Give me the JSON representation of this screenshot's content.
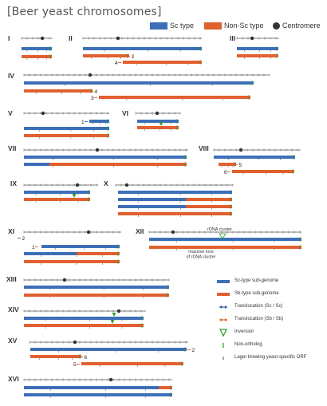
{
  "title": "[Beer yeast chromosomes]",
  "colors": {
    "sc": "#3d6fb8",
    "nonsc": "#e1602f",
    "axis": "#555555",
    "centromere": "#333333",
    "translocation_sc": "#2b5aa8",
    "translocation_sb": "#e1602f",
    "inversion": "#2ca02c",
    "nonortholog": "#2ca02c",
    "lager_orf": "#555555"
  },
  "top_legend": {
    "sc": "Sc type",
    "nonsc": "Non-Sc type",
    "centromere": "Centromere"
  },
  "bottom_legend": {
    "sc_subgenome": "Sc-type sub-genome",
    "sb_subgenome": "Sb-type sub-genome",
    "translocation_sc": "Translocation (Sc / Sc)",
    "translocation_sb": "Translocation (Sb / Sb)",
    "inversion": "Inversion",
    "nonortholog": "Non-ortholog",
    "lager_orf": "Lager brewing yeast-specific ORF"
  },
  "chromosomes": [
    {
      "label": "I",
      "bars": [
        [
          "sc"
        ],
        [
          "nonsc"
        ]
      ],
      "labels": []
    },
    {
      "label": "II",
      "bars": [
        [
          "sc"
        ],
        [
          "nonsc"
        ],
        [
          "nonsc"
        ]
      ],
      "labels": [
        "3",
        "4"
      ]
    },
    {
      "label": "III",
      "bars": [
        [
          "sc"
        ],
        [
          "nonsc"
        ]
      ],
      "labels": []
    },
    {
      "label": "IV",
      "bars": [
        [
          "sc"
        ],
        [
          "nonsc"
        ],
        [
          "nonsc"
        ]
      ],
      "labels": [
        "4",
        "3"
      ]
    },
    {
      "label": "V",
      "bars": [
        [
          "sc"
        ],
        [
          "sc"
        ],
        [
          "nonsc"
        ]
      ],
      "labels": [
        "1"
      ]
    },
    {
      "label": "VI",
      "bars": [
        [
          "sc"
        ],
        [
          "nonsc"
        ]
      ],
      "labels": []
    },
    {
      "label": "VII",
      "bars": [
        [
          "sc"
        ],
        [
          "sc",
          "nonsc"
        ]
      ],
      "labels": []
    },
    {
      "label": "VIII",
      "bars": [
        [
          "sc"
        ],
        [
          "nonsc"
        ],
        [
          "nonsc"
        ]
      ],
      "labels": [
        "5",
        "6"
      ]
    },
    {
      "label": "IX",
      "bars": [
        [
          "sc"
        ],
        [
          "nonsc"
        ]
      ],
      "labels": []
    },
    {
      "label": "X",
      "bars": [
        [
          "sc"
        ],
        [
          "sc",
          "nonsc"
        ],
        [
          "sc",
          "nonsc"
        ],
        [
          "nonsc"
        ]
      ],
      "labels": []
    },
    {
      "label": "XI",
      "bars": [
        [
          "sc"
        ],
        [
          "sc",
          "nonsc"
        ],
        [
          "nonsc"
        ]
      ],
      "labels": [
        "2",
        "1"
      ]
    },
    {
      "label": "XII",
      "bars": [
        [
          "sc"
        ],
        [
          "nonsc"
        ]
      ],
      "labels": [],
      "annotations": [
        "rDNA cluster",
        "massive loss\nof rDNA cluster"
      ]
    },
    {
      "label": "XIII",
      "bars": [
        [
          "sc"
        ],
        [
          "nonsc"
        ]
      ],
      "labels": []
    },
    {
      "label": "XIV",
      "bars": [
        [
          "sc"
        ],
        [
          "nonsc"
        ]
      ],
      "labels": []
    },
    {
      "label": "XV",
      "bars": [
        [
          "sc"
        ],
        [
          "nonsc"
        ],
        [
          "nonsc"
        ]
      ],
      "labels": [
        "2",
        "6",
        "5"
      ]
    },
    {
      "label": "XVI",
      "bars": [
        [
          "sc",
          "nonsc"
        ],
        [
          "sc"
        ]
      ],
      "labels": []
    }
  ]
}
